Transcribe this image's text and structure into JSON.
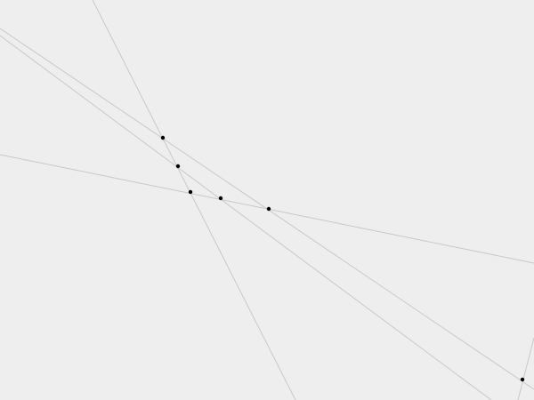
{
  "colors": {
    "background": "#eeeeee",
    "line": "#c8c8c8",
    "point": "#000000"
  }
}
